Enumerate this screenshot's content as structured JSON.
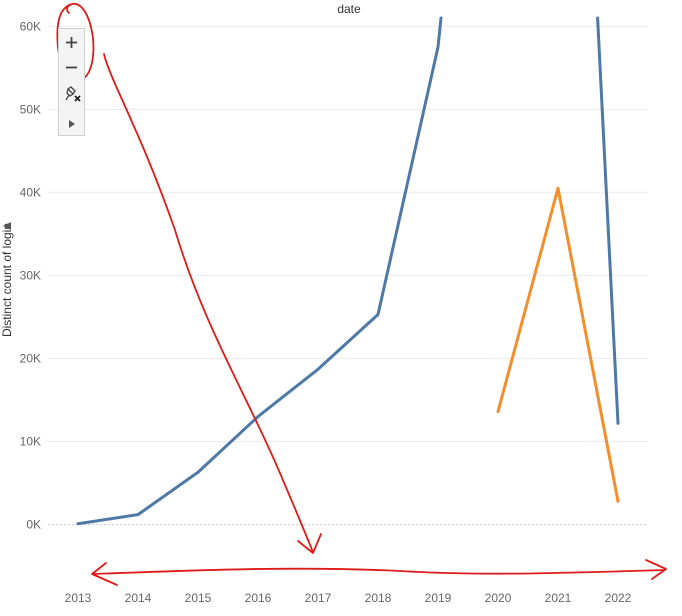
{
  "chart_data": {
    "type": "line",
    "header": "date",
    "xlabel": "",
    "ylabel": "Distinct count of login",
    "categories": [
      "2013",
      "2014",
      "2015",
      "2016",
      "2017",
      "2018",
      "2019",
      "2020",
      "2021",
      "2022"
    ],
    "x": [
      2013,
      2014,
      2015,
      2016,
      2017,
      2018,
      2019,
      2020,
      2021,
      2022
    ],
    "ylim": [
      -8000,
      61000
    ],
    "yticks": [
      0,
      10000,
      20000,
      30000,
      40000,
      50000,
      60000
    ],
    "ytick_labels": [
      "0K",
      "10K",
      "20K",
      "30K",
      "40K",
      "50K",
      "60K"
    ],
    "grid": true,
    "series": [
      {
        "color": "#4e79a7",
        "points": [
          [
            2013,
            100
          ],
          [
            2014,
            1200
          ],
          [
            2015,
            6300
          ],
          [
            2016,
            13000
          ],
          [
            2017,
            18700
          ],
          [
            2018,
            25300
          ],
          [
            2019,
            57500
          ],
          [
            2019.05,
            61000
          ]
        ],
        "points_tail": [
          [
            2021.66,
            61000
          ],
          [
            2022,
            12200
          ]
        ]
      },
      {
        "color": "#f28e2b",
        "points": [
          [
            2020,
            13600
          ],
          [
            2021,
            40500
          ],
          [
            2022,
            2800
          ]
        ]
      }
    ]
  },
  "toolbar": {
    "zoom_in_icon": "plus-icon",
    "zoom_out_icon": "minus-icon",
    "reset_icon": "pushpin-x-icon",
    "play_icon": "play-icon"
  },
  "annotations": {
    "color": "#dd1c1a",
    "marks": [
      "circle-around-zoom-controls",
      "arrow-down",
      "double-arrow-horizontal"
    ]
  }
}
